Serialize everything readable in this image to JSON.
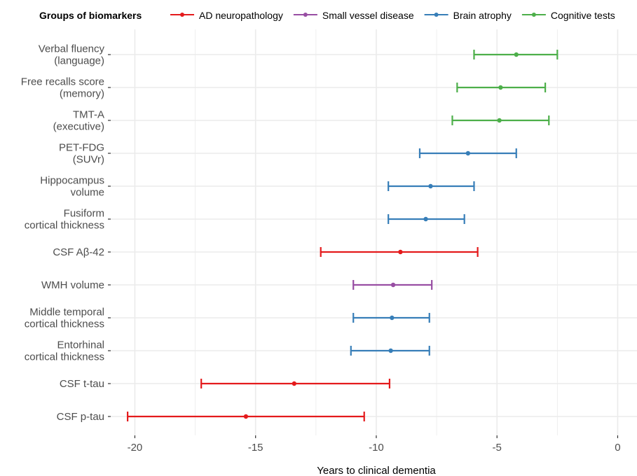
{
  "chart_data": {
    "type": "errorbar",
    "title": "",
    "xlabel": "Years to clinical dementia",
    "ylabel": "",
    "xlim": [
      -21.0,
      0.8
    ],
    "xticks": [
      -20,
      -15,
      -10,
      -5,
      0
    ],
    "xtick_labels": [
      "-20",
      "-15",
      "-10",
      "-5",
      "0"
    ],
    "grid": true,
    "legend": {
      "title": "Groups of biomarkers",
      "position": "top",
      "entries": [
        {
          "name": "AD neuropathology",
          "color": "#e41a1c"
        },
        {
          "name": "Small vessel disease",
          "color": "#984ea3"
        },
        {
          "name": "Brain atrophy",
          "color": "#377eb8"
        },
        {
          "name": "Cognitive tests",
          "color": "#4daf4a"
        }
      ]
    },
    "categories": [
      {
        "lines": [
          "Verbal fluency",
          "(language)"
        ],
        "group": "Cognitive tests",
        "estimate": -4.2,
        "lower": -5.95,
        "upper": -2.5
      },
      {
        "lines": [
          "Free recalls score",
          "(memory)"
        ],
        "group": "Cognitive tests",
        "estimate": -4.85,
        "lower": -6.65,
        "upper": -3.0
      },
      {
        "lines": [
          "TMT-A",
          "(executive)"
        ],
        "group": "Cognitive tests",
        "estimate": -4.9,
        "lower": -6.85,
        "upper": -2.85
      },
      {
        "lines": [
          "PET-FDG",
          "(SUVr)"
        ],
        "group": "Brain atrophy",
        "estimate": -6.2,
        "lower": -8.2,
        "upper": -4.2
      },
      {
        "lines": [
          "Hippocampus",
          "volume"
        ],
        "group": "Brain atrophy",
        "estimate": -7.75,
        "lower": -9.5,
        "upper": -5.95
      },
      {
        "lines": [
          "Fusiform",
          "cortical thickness"
        ],
        "group": "Brain atrophy",
        "estimate": -7.95,
        "lower": -9.5,
        "upper": -6.35
      },
      {
        "lines": [
          "CSF Aβ-42"
        ],
        "group": "AD neuropathology",
        "estimate": -9.0,
        "lower": -12.3,
        "upper": -5.8
      },
      {
        "lines": [
          "WMH volume"
        ],
        "group": "Small vessel disease",
        "estimate": -9.3,
        "lower": -10.95,
        "upper": -7.7
      },
      {
        "lines": [
          "Middle temporal",
          "cortical thickness"
        ],
        "group": "Brain atrophy",
        "estimate": -9.35,
        "lower": -10.95,
        "upper": -7.8
      },
      {
        "lines": [
          "Entorhinal",
          "cortical thickness"
        ],
        "group": "Brain atrophy",
        "estimate": -9.4,
        "lower": -11.05,
        "upper": -7.8
      },
      {
        "lines": [
          "CSF t-tau"
        ],
        "group": "AD neuropathology",
        "estimate": -13.4,
        "lower": -17.25,
        "upper": -9.45
      },
      {
        "lines": [
          "CSF p-tau"
        ],
        "group": "AD neuropathology",
        "estimate": -15.4,
        "lower": -20.3,
        "upper": -10.5
      }
    ]
  }
}
